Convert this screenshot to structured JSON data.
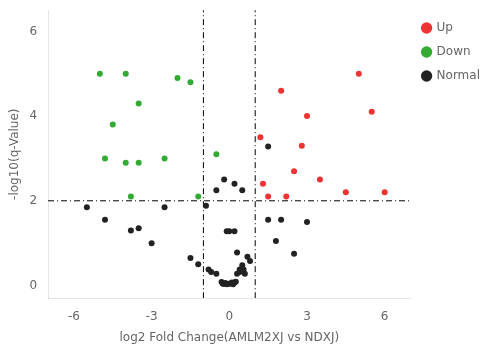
{
  "chart_data": {
    "type": "scatter",
    "xlabel": "log2 Fold Change(AMLM2XJ vs NDXJ)",
    "ylabel": "-log10(q-Value)",
    "xlim": [
      -7,
      7
    ],
    "ylim": [
      -0.3,
      6.5
    ],
    "xticks": [
      -6,
      -3,
      0,
      3,
      6
    ],
    "yticks": [
      0,
      2,
      4,
      6
    ],
    "grid": false,
    "legend": "right",
    "hlines": [
      2.0
    ],
    "vlines": [
      -1.0,
      1.0
    ],
    "series": [
      {
        "name": "Up",
        "color": "#EE3333",
        "marker": "circle",
        "x": [
          1.2,
          2.0,
          3.0,
          5.0,
          5.5,
          2.5,
          3.5,
          1.5,
          2.2,
          4.5,
          6.0,
          1.3,
          2.8
        ],
        "values": [
          3.5,
          4.6,
          4.0,
          5.0,
          4.1,
          2.7,
          2.5,
          2.1,
          2.1,
          2.2,
          2.2,
          2.4,
          3.3
        ]
      },
      {
        "name": "Down",
        "color": "#33AA33",
        "marker": "circle",
        "x": [
          -5.0,
          -4.0,
          -3.5,
          -4.5,
          -4.8,
          -4.0,
          -3.5,
          -2.5,
          -2.0,
          -1.5,
          -0.5,
          -3.8,
          -1.2
        ],
        "values": [
          5.0,
          5.0,
          4.3,
          3.8,
          3.0,
          2.9,
          2.9,
          3.0,
          4.9,
          4.8,
          3.1,
          2.1,
          2.1
        ]
      },
      {
        "name": "Normal",
        "color": "#222222",
        "marker": "circle",
        "x": [
          -5.5,
          -4.8,
          -3.8,
          -3.5,
          -3.0,
          -2.5,
          -1.5,
          -1.2,
          -0.8,
          -0.7,
          -0.5,
          -0.3,
          -0.25,
          -0.2,
          -0.15,
          -0.1,
          0.0,
          0.05,
          0.1,
          0.15,
          0.2,
          0.25,
          0.3,
          0.4,
          0.5,
          0.55,
          0.7,
          0.8,
          1.5,
          2.0,
          1.8,
          2.5,
          3.0,
          -0.2,
          -0.5,
          0.2,
          0.5,
          -0.9,
          0.0,
          0.2,
          -0.1,
          0.3,
          0.4,
          0.6,
          1.5
        ],
        "values": [
          1.85,
          1.55,
          1.3,
          1.35,
          1.0,
          1.85,
          0.65,
          0.5,
          0.38,
          0.32,
          0.28,
          0.08,
          0.04,
          0.04,
          0.06,
          0.03,
          0.04,
          0.05,
          0.07,
          0.03,
          0.07,
          0.09,
          0.28,
          0.32,
          0.48,
          0.38,
          0.68,
          0.58,
          1.55,
          1.55,
          1.05,
          0.75,
          1.5,
          2.5,
          2.25,
          2.4,
          2.25,
          1.88,
          1.28,
          1.28,
          1.28,
          0.78,
          0.38,
          0.28,
          3.28
        ]
      }
    ]
  }
}
